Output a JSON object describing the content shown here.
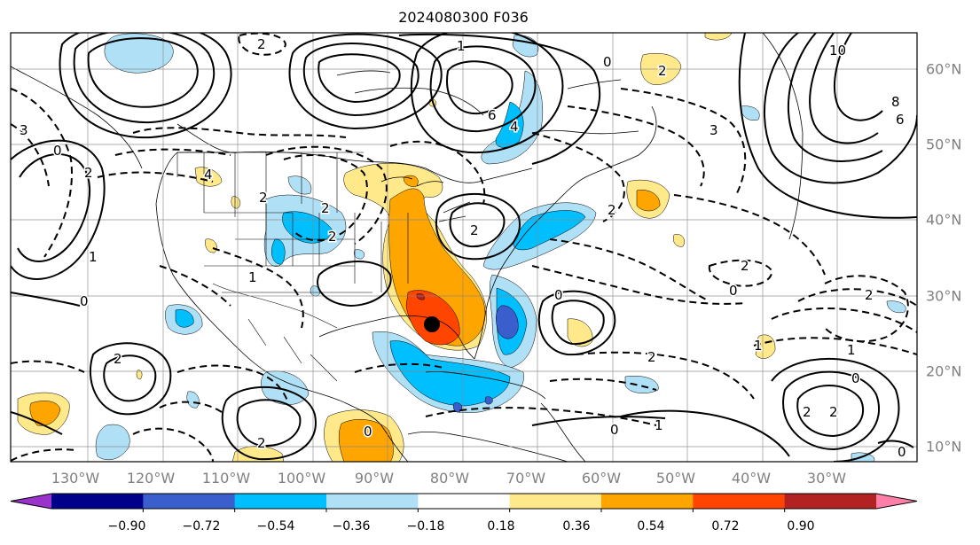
{
  "title": "2024080300 F036",
  "lon_labels": [
    "130°W",
    "120°W",
    "110°W",
    "100°W",
    "90°W",
    "80°W",
    "70°W",
    "60°W",
    "50°W",
    "40°W",
    "30°W"
  ],
  "lat_labels": [
    "60°N",
    "50°N",
    "40°N",
    "30°N",
    "20°N",
    "10°N"
  ],
  "colorbar": {
    "ticks": [
      "−0.90",
      "−0.72",
      "−0.54",
      "−0.36",
      "−0.18",
      "0.18",
      "0.36",
      "0.54",
      "0.72",
      "0.90"
    ],
    "colors": [
      "#9933cc",
      "#00008b",
      "#3a5fcd",
      "#00bfff",
      "#b0e0f5",
      "#ffffff",
      "#ffe98a",
      "#ffa500",
      "#ff4500",
      "#b22222",
      "#ff7fa8"
    ]
  },
  "contour_labels": [
    "2",
    "3",
    "4",
    "6",
    "0",
    "1",
    "2",
    "3",
    "2",
    "2",
    "0",
    "10",
    "8",
    "6",
    "2",
    "4",
    "2",
    "0",
    "2",
    "2",
    "1",
    "1",
    "0",
    "1",
    "2",
    "2",
    "2",
    "0",
    "1",
    "0",
    "2",
    "0",
    "2",
    "2",
    "0",
    "1",
    "2",
    "0"
  ],
  "fill_colors": {
    "light_blue": "#b0e0f5",
    "blue": "#00bfff",
    "dark_blue": "#3a5fcd",
    "navy": "#00008b",
    "light_yellow": "#ffe98a",
    "orange": "#ffa500",
    "red_orange": "#ff4500"
  },
  "marker": {
    "name": "storm-center-dot",
    "lon": -84.5,
    "lat": 26.5
  }
}
